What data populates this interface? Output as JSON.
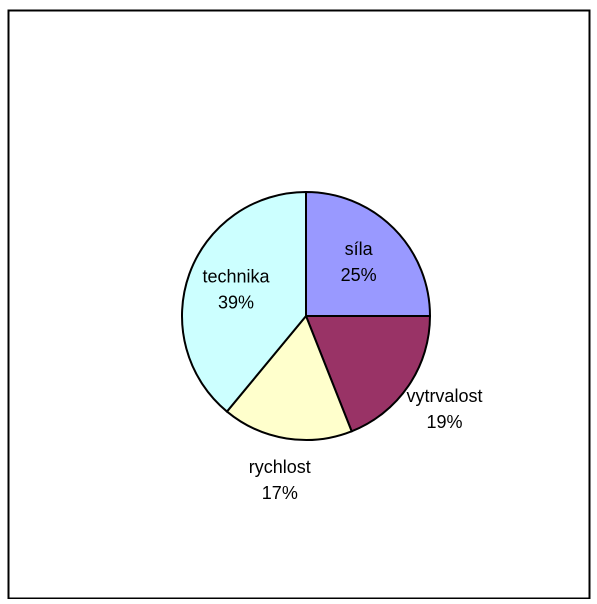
{
  "chart_data": {
    "type": "pie",
    "categories": [
      "síla",
      "vytrvalost",
      "rychlost",
      "technika"
    ],
    "values": [
      25,
      19,
      17,
      39
    ],
    "value_labels": [
      "25%",
      "19%",
      "17%",
      "39%"
    ],
    "colors": [
      "#9999ff",
      "#993366",
      "#ffffcc",
      "#ccffff"
    ]
  }
}
